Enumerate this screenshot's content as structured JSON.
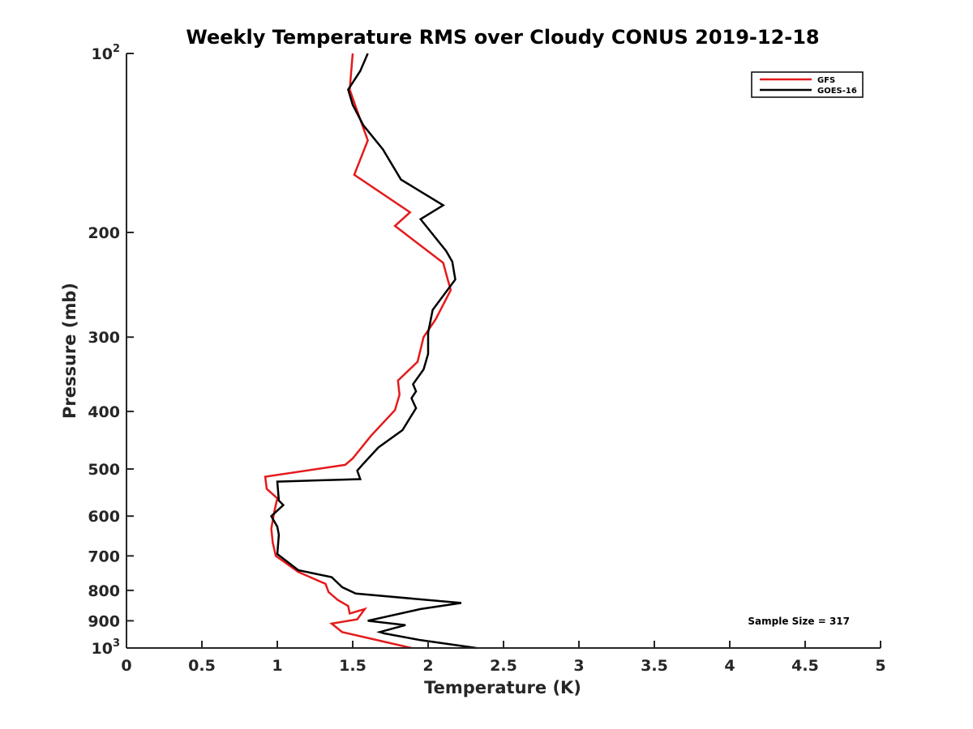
{
  "chart_data": {
    "type": "line",
    "title": "Weekly Temperature RMS over Cloudy CONUS 2019-12-18",
    "xlabel": "Temperature (K)",
    "ylabel": "Pressure (mb)",
    "xlim": [
      0,
      5
    ],
    "ylim": [
      100,
      1000
    ],
    "yscale": "log",
    "y_reversed": true,
    "xticks": [
      0,
      0.5,
      1,
      1.5,
      2,
      2.5,
      3,
      3.5,
      4,
      4.5,
      5
    ],
    "xtick_labels": [
      "0",
      "0.5",
      "1",
      "1.5",
      "2",
      "2.5",
      "3",
      "3.5",
      "4",
      "4.5",
      "5"
    ],
    "yticks": [
      100,
      200,
      300,
      400,
      500,
      600,
      700,
      800,
      900,
      1000
    ],
    "ytick_labels": [
      {
        "base": "10",
        "exp": "2"
      },
      {
        "base": "200"
      },
      {
        "base": "300"
      },
      {
        "base": "400"
      },
      {
        "base": "500"
      },
      {
        "base": "600"
      },
      {
        "base": "700"
      },
      {
        "base": "800"
      },
      {
        "base": "900"
      },
      {
        "base": "10",
        "exp": "3"
      }
    ],
    "legend_position": "top-right",
    "annotation": "Sample Size = 317",
    "series": [
      {
        "name": "GFS",
        "color": "#e41a1c",
        "x": [
          1.5,
          1.48,
          1.53,
          1.6,
          1.51,
          1.88,
          1.78,
          2.1,
          2.13,
          2.15,
          2.05,
          1.97,
          1.93,
          1.8,
          1.81,
          1.78,
          1.62,
          1.5,
          1.45,
          0.92,
          0.93,
          1.0,
          0.98,
          0.96,
          0.97,
          0.99,
          1.14,
          1.32,
          1.34,
          1.4,
          1.47,
          1.48,
          1.58,
          1.53,
          1.36,
          1.43,
          1.7,
          1.89
        ],
        "y": [
          100,
          115,
          125,
          140,
          160,
          185,
          195,
          225,
          240,
          250,
          280,
          300,
          330,
          355,
          375,
          398,
          440,
          480,
          492,
          515,
          540,
          560,
          590,
          630,
          665,
          700,
          745,
          780,
          805,
          830,
          850,
          875,
          860,
          895,
          910,
          940,
          975,
          1000
        ]
      },
      {
        "name": "GOES-16",
        "color": "#000000",
        "x": [
          1.6,
          1.55,
          1.47,
          1.5,
          1.57,
          1.7,
          1.82,
          2.1,
          1.95,
          2.12,
          2.16,
          2.18,
          2.03,
          2.0,
          2.0,
          1.97,
          1.9,
          1.92,
          1.89,
          1.92,
          1.83,
          1.67,
          1.57,
          1.53,
          1.55,
          1.0,
          1.01,
          1.04,
          0.96,
          1.0,
          1.01,
          1.0,
          1.14,
          1.36,
          1.43,
          1.52,
          2.22,
          1.95,
          1.6,
          1.85,
          1.68,
          1.71,
          1.95,
          2.32
        ],
        "y": [
          100,
          107,
          115,
          122,
          132,
          145,
          163,
          180,
          190,
          215,
          224,
          240,
          270,
          295,
          320,
          340,
          360,
          370,
          380,
          395,
          430,
          460,
          490,
          503,
          520,
          525,
          565,
          575,
          600,
          625,
          645,
          695,
          740,
          760,
          790,
          810,
          840,
          860,
          900,
          915,
          940,
          945,
          970,
          1000
        ]
      }
    ]
  }
}
